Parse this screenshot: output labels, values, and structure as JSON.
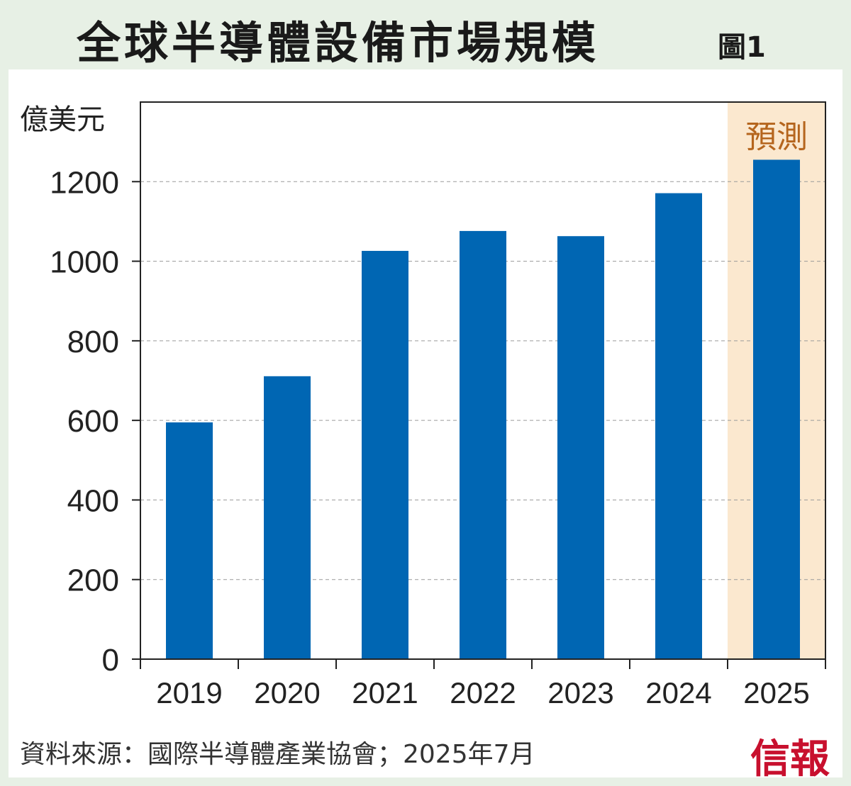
{
  "title": "全球半導體設備市場規模",
  "figure_label": "圖1",
  "source_note": "資料來源：國際半導體產業協會；2025年7月",
  "logo_text": "信報",
  "colors": {
    "background": "#e7f0e5",
    "bar": "#0066b3",
    "forecast_band": "#fbe8cf",
    "forecast_text": "#b5651d",
    "logo": "#c8102e"
  },
  "chart_data": {
    "type": "bar",
    "title": "全球半導體設備市場規模",
    "ylabel": "億美元",
    "xlabel": "",
    "categories": [
      "2019",
      "2020",
      "2021",
      "2022",
      "2023",
      "2024",
      "2025"
    ],
    "values": [
      595,
      711,
      1026,
      1076,
      1063,
      1171,
      1255
    ],
    "ylim": [
      0,
      1400
    ],
    "yticks": [
      0,
      200,
      400,
      600,
      800,
      1000,
      1200
    ],
    "grid": "dashed horizontal",
    "forecast_label": "預測",
    "forecast_categories": [
      "2025"
    ]
  }
}
